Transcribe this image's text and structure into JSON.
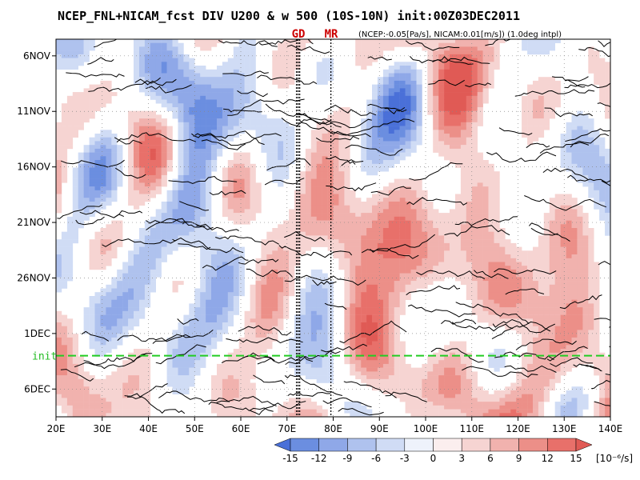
{
  "chart_data": {
    "type": "heatmap",
    "title": "NCEP_FNL+NICAM_fcst DIV U200 & w 500 (10S-10N) init:00Z03DEC2011",
    "subtitle": "(NCEP:-0.05[Pa/s], NICAM:0.01[m/s]) (1.0deg intpl)",
    "x_ticks": [
      "20E",
      "30E",
      "40E",
      "50E",
      "60E",
      "70E",
      "80E",
      "90E",
      "100E",
      "110E",
      "120E",
      "130E",
      "140E"
    ],
    "x_tick_values": [
      20,
      30,
      40,
      50,
      60,
      70,
      80,
      90,
      100,
      110,
      120,
      130,
      140
    ],
    "xlim": [
      20,
      140
    ],
    "y_ticks": [
      "6NOV",
      "11NOV",
      "16NOV",
      "21NOV",
      "26NOV",
      "1DEC",
      "6DEC"
    ],
    "y_tick_values": [
      -27,
      -22,
      -17,
      -12,
      -7,
      -2,
      3
    ],
    "ylim": [
      -28.5,
      5.5
    ],
    "y_direction": "time increases downward",
    "init": {
      "label": "init",
      "value": 0,
      "color": "#22cc22"
    },
    "markers": [
      {
        "label": "GD",
        "lon": 72.4
      },
      {
        "label": "MR",
        "lon": 79.5
      }
    ],
    "marker_color": "#cc0000",
    "colorbar": {
      "ticks": [
        "-15",
        "-12",
        "-9",
        "-6",
        "-3",
        "0",
        "3",
        "6",
        "9",
        "12",
        "15"
      ],
      "unit": "[10⁻⁶/s]",
      "colors": [
        "#4a70d8",
        "#6b8ee0",
        "#8fa8e8",
        "#afc2ee",
        "#d0dcf5",
        "#eef2fb",
        "#fbeeee",
        "#f6d4d2",
        "#f1b2ae",
        "#ec8f88",
        "#e8706a",
        "#e05a55"
      ]
    },
    "features": [
      {
        "name": "negative divergence band",
        "lon": [
          45,
          55
        ],
        "time": [
          -28,
          -2
        ],
        "sign": "negative"
      },
      {
        "name": "positive divergence band",
        "lon": [
          70,
          95
        ],
        "time": [
          -14,
          -2
        ],
        "sign": "positive"
      },
      {
        "name": "positive divergence band",
        "lon": [
          95,
          125
        ],
        "time": [
          -8,
          3
        ],
        "sign": "positive"
      },
      {
        "name": "positive divergence band",
        "lon": [
          105,
          120
        ],
        "time": [
          -24,
          -13
        ],
        "sign": "positive"
      },
      {
        "name": "positive divergence band",
        "lon": [
          120,
          140
        ],
        "time": [
          -1,
          5
        ],
        "sign": "positive"
      }
    ]
  }
}
